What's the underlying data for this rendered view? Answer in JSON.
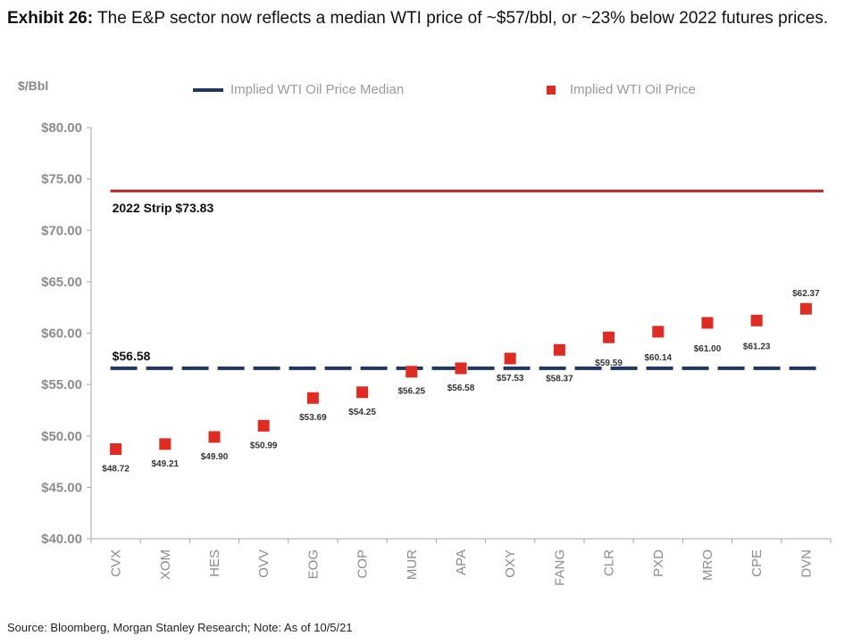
{
  "title_bold": "Exhibit 26:",
  "title_text": "The E&P sector now reflects a median WTI price of ~$57/bbl, or ~23% below 2022 futures prices.",
  "source": "Source: Bloomberg, Morgan Stanley Research; Note: As of 10/5/21",
  "colors": {
    "median_line": "#1f3864",
    "points": "#e02a22",
    "strip_line": "#b22222"
  },
  "chart_data": {
    "type": "scatter",
    "ylabel": "$/Bbl",
    "ylim": [
      40,
      80
    ],
    "yticks": [
      40,
      45,
      50,
      55,
      60,
      65,
      70,
      75,
      80
    ],
    "ytick_labels": [
      "$40.00",
      "$45.00",
      "$50.00",
      "$55.00",
      "$60.00",
      "$65.00",
      "$70.00",
      "$75.00",
      "$80.00"
    ],
    "categories": [
      "CVX",
      "XOM",
      "HES",
      "OVV",
      "EOG",
      "COP",
      "MUR",
      "APA",
      "OXY",
      "FANG",
      "CLR",
      "PXD",
      "MRO",
      "CPE",
      "DVN"
    ],
    "series": [
      {
        "name": "Implied WTI Oil Price",
        "values": [
          48.72,
          49.21,
          49.9,
          50.99,
          53.69,
          54.25,
          56.25,
          56.58,
          57.53,
          58.37,
          59.59,
          60.14,
          61.0,
          61.23,
          62.37
        ],
        "labels": [
          "$48.72",
          "$49.21",
          "$49.90",
          "$50.99",
          "$53.69",
          "$54.25",
          "$56.25",
          "$56.58",
          "$57.53",
          "$58.37",
          "$59.59",
          "$60.14",
          "$61.00",
          "$61.23",
          "$62.37"
        ]
      },
      {
        "name": "Implied WTI Oil Price Median",
        "value": 56.58,
        "label": "$56.58"
      }
    ],
    "reference_line": {
      "value": 73.83,
      "label": "2022  Strip $73.83"
    },
    "legend": [
      "Implied WTI Oil Price Median",
      "Implied WTI Oil Price"
    ],
    "legend_position": "top",
    "grid": false
  }
}
